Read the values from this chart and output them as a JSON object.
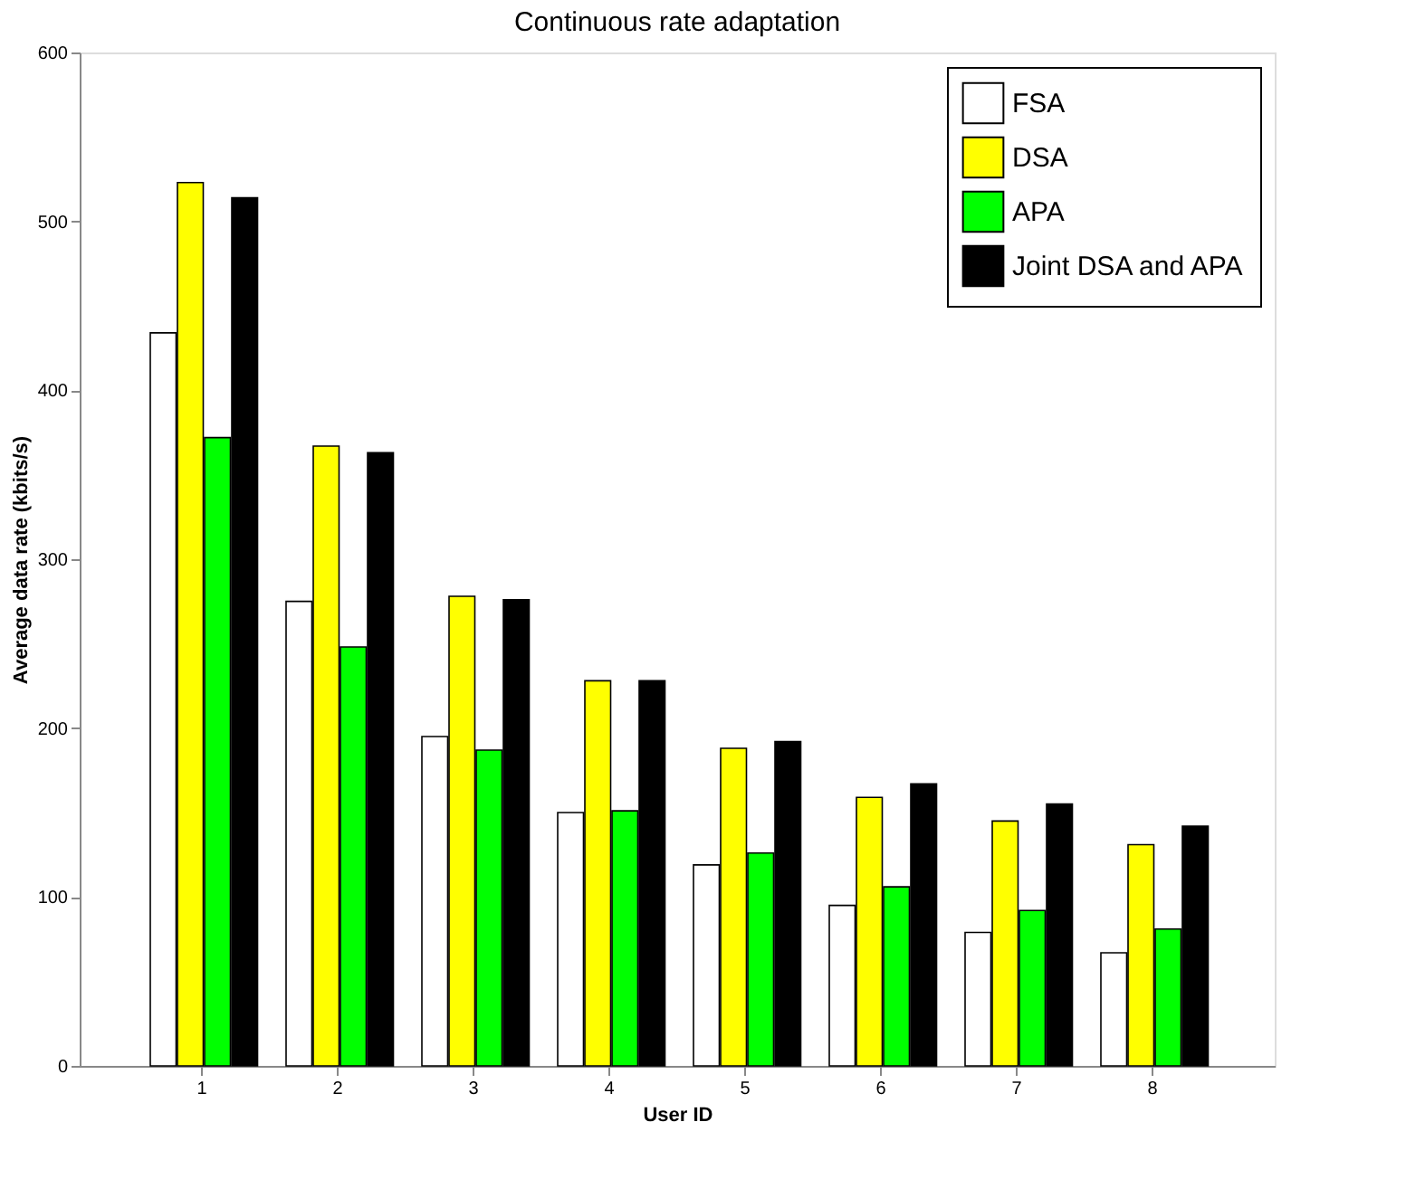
{
  "chart_data": {
    "type": "bar",
    "title": "Continuous rate adaptation",
    "xlabel": "User ID",
    "ylabel": "Average data rate (kbits/s)",
    "categories": [
      "1",
      "2",
      "3",
      "4",
      "5",
      "6",
      "7",
      "8"
    ],
    "series": [
      {
        "name": "FSA",
        "color": "#ffffff",
        "values": [
          434,
          275,
          195,
          150,
          119,
          95,
          79,
          67
        ]
      },
      {
        "name": "DSA",
        "color": "#ffff00",
        "values": [
          523,
          367,
          278,
          228,
          188,
          159,
          145,
          131
        ]
      },
      {
        "name": "APA",
        "color": "#00ff00",
        "values": [
          372,
          248,
          187,
          151,
          126,
          106,
          92,
          81
        ]
      },
      {
        "name": "Joint DSA and APA",
        "color": "#000000",
        "values": [
          514,
          363,
          276,
          228,
          192,
          167,
          155,
          142
        ]
      }
    ],
    "ylim": [
      0,
      600
    ],
    "yticks": [
      0,
      100,
      200,
      300,
      400,
      500,
      600
    ],
    "grid": false,
    "legend": "top right"
  }
}
